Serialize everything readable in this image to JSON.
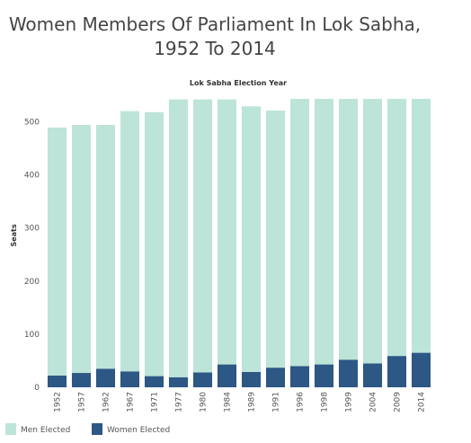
{
  "chart_data": {
    "type": "bar",
    "stacked": true,
    "title": "Women Members Of Parliament In Lok Sabha, 1952 To 2014",
    "top_axis_label": "Lok Sabha Election Year",
    "xlabel": "",
    "ylabel": "Seats",
    "ylim": [
      0,
      560
    ],
    "yticks": [
      0,
      100,
      200,
      300,
      400,
      500
    ],
    "categories": [
      "1952",
      "1957",
      "1962",
      "1967",
      "1971",
      "1977",
      "1980",
      "1984",
      "1989",
      "1991",
      "1996",
      "1998",
      "1999",
      "2004",
      "2009",
      "2014"
    ],
    "series": [
      {
        "name": "Women Elected",
        "color": "#2d5784",
        "values": [
          22,
          27,
          35,
          30,
          21,
          19,
          28,
          43,
          29,
          37,
          40,
          43,
          52,
          45,
          59,
          65
        ]
      },
      {
        "name": "Men Elected",
        "color": "#bde4d9",
        "values": [
          467,
          467,
          459,
          490,
          497,
          523,
          514,
          499,
          500,
          484,
          503,
          500,
          491,
          498,
          484,
          478
        ]
      }
    ],
    "legend": {
      "position": "bottom-left",
      "items": [
        {
          "label": "Men Elected",
          "color": "#bde4d9"
        },
        {
          "label": "Women Elected",
          "color": "#2d5784"
        }
      ]
    },
    "grid": false
  }
}
